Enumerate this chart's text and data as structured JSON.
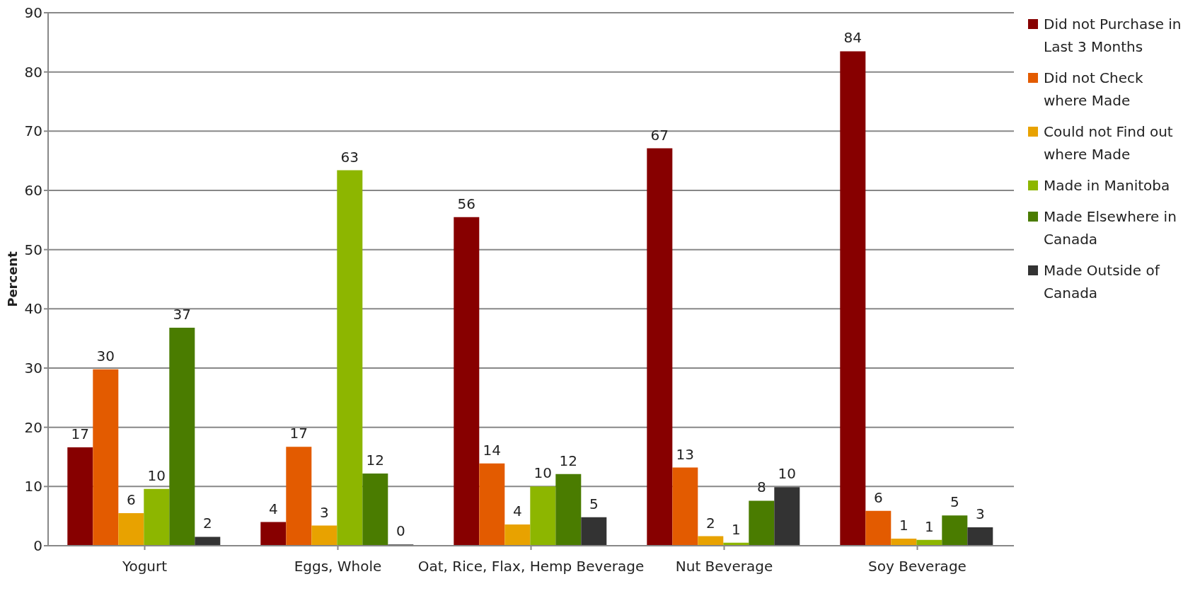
{
  "chart_data": {
    "type": "bar",
    "ylabel": "Percent",
    "categories": [
      "Yogurt",
      "Eggs, Whole",
      "Oat, Rice, Flax, Hemp Beverage",
      "Nut Beverage",
      "Soy Beverage"
    ],
    "series": [
      {
        "name": "Did not Purchase in Last 3 Months",
        "color": "#870000",
        "values": [
          16.6,
          4.0,
          55.5,
          67.1,
          83.5
        ],
        "value_labels": [
          "17",
          "4",
          "56",
          "67",
          "84"
        ]
      },
      {
        "name": "Did not Check where Made",
        "color": "#e35b00",
        "values": [
          29.8,
          16.7,
          13.9,
          13.2,
          5.9
        ],
        "value_labels": [
          "30",
          "17",
          "14",
          "13",
          "6"
        ]
      },
      {
        "name": "Could not Find out where Made",
        "color": "#e8a200",
        "values": [
          5.5,
          3.4,
          3.6,
          1.6,
          1.2
        ],
        "value_labels": [
          "6",
          "3",
          "4",
          "2",
          "1"
        ]
      },
      {
        "name": "Made in Manitoba",
        "color": "#8db600",
        "values": [
          9.6,
          63.4,
          10.0,
          0.5,
          1.0
        ],
        "value_labels": [
          "10",
          "63",
          "10",
          "1",
          "1"
        ]
      },
      {
        "name": "Made Elsewhere in Canada",
        "color": "#4a7c00",
        "values": [
          36.8,
          12.2,
          12.1,
          7.6,
          5.1
        ],
        "value_labels": [
          "37",
          "12",
          "12",
          "8",
          "5"
        ]
      },
      {
        "name": "Made Outside of Canada",
        "color": "#333333",
        "values": [
          1.5,
          0.2,
          4.8,
          9.9,
          3.1
        ],
        "value_labels": [
          "2",
          "0",
          "5",
          "10",
          "3"
        ]
      }
    ],
    "ylim": [
      0,
      90
    ],
    "yticks": [
      0,
      10,
      20,
      30,
      40,
      50,
      60,
      70,
      80,
      90
    ],
    "grid": "y",
    "legend": "top right"
  }
}
